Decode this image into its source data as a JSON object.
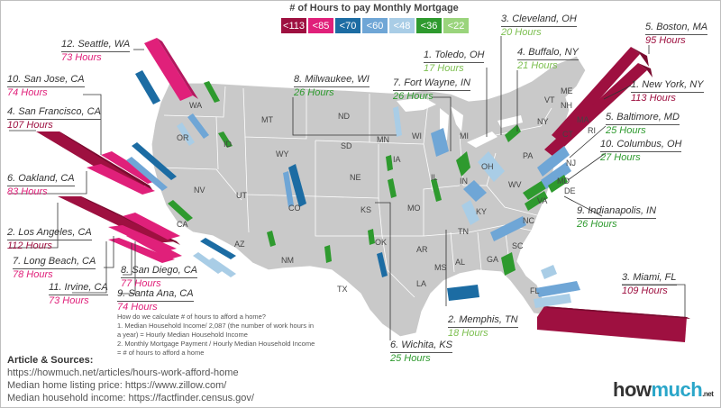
{
  "legend": {
    "title": "# of Hours to pay Monthly Mortgage",
    "items": [
      {
        "label": "<113",
        "color": "#9e1040"
      },
      {
        "label": "<85",
        "color": "#e0207a"
      },
      {
        "label": "<70",
        "color": "#1c6ca3"
      },
      {
        "label": "<60",
        "color": "#6fa6d6"
      },
      {
        "label": "<48",
        "color": "#a9cde6"
      },
      {
        "label": "<36",
        "color": "#2e9a2e"
      },
      {
        "label": "<22",
        "color": "#9ad47c"
      }
    ]
  },
  "cities": [
    {
      "id": "seattle",
      "rank_city": "12. Seattle, WA",
      "hours": "73 Hours",
      "color": "#e0207a"
    },
    {
      "id": "san-jose",
      "rank_city": "10. San Jose, CA",
      "hours": "74 Hours",
      "color": "#e0207a"
    },
    {
      "id": "san-francisco",
      "rank_city": "4. San Francisco, CA",
      "hours": "107 Hours",
      "color": "#9e1040"
    },
    {
      "id": "oakland",
      "rank_city": "6. Oakland, CA",
      "hours": "83 Hours",
      "color": "#e0207a"
    },
    {
      "id": "los-angeles",
      "rank_city": "2. Los Angeles, CA",
      "hours": "112 Hours",
      "color": "#9e1040"
    },
    {
      "id": "long-beach",
      "rank_city": "7. Long Beach, CA",
      "hours": "78 Hours",
      "color": "#e0207a"
    },
    {
      "id": "irvine",
      "rank_city": "11. Irvine, CA",
      "hours": "73 Hours",
      "color": "#e0207a"
    },
    {
      "id": "san-diego",
      "rank_city": "8. San Diego, CA",
      "hours": "77 Hours",
      "color": "#e0207a"
    },
    {
      "id": "santa-ana",
      "rank_city": "9. Santa Ana, CA",
      "hours": "74 Hours",
      "color": "#e0207a"
    },
    {
      "id": "milwaukee",
      "rank_city": "8. Milwaukee, WI",
      "hours": "26 Hours",
      "color": "#2e9a2e"
    },
    {
      "id": "toledo",
      "rank_city": "1. Toledo, OH",
      "hours": "17 Hours",
      "color": "#7cbf4f"
    },
    {
      "id": "fort-wayne",
      "rank_city": "7. Fort Wayne, IN",
      "hours": "26 Hours",
      "color": "#2e9a2e"
    },
    {
      "id": "cleveland",
      "rank_city": "3. Cleveland, OH",
      "hours": "20 Hours",
      "color": "#7cbf4f"
    },
    {
      "id": "buffalo",
      "rank_city": "4. Buffalo, NY",
      "hours": "21 Hours",
      "color": "#7cbf4f"
    },
    {
      "id": "boston",
      "rank_city": "5. Boston, MA",
      "hours": "95 Hours",
      "color": "#9e1040"
    },
    {
      "id": "new-york",
      "rank_city": "1. New York, NY",
      "hours": "113 Hours",
      "color": "#9e1040"
    },
    {
      "id": "baltimore",
      "rank_city": "5. Baltimore, MD",
      "hours": "25 Hours",
      "color": "#2e9a2e"
    },
    {
      "id": "columbus",
      "rank_city": "10. Columbus, OH",
      "hours": "27 Hours",
      "color": "#2e9a2e"
    },
    {
      "id": "indianapolis",
      "rank_city": "9. Indianapolis, IN",
      "hours": "26 Hours",
      "color": "#2e9a2e"
    },
    {
      "id": "miami",
      "rank_city": "3. Miami, FL",
      "hours": "109 Hours",
      "color": "#9e1040"
    },
    {
      "id": "memphis",
      "rank_city": "2. Memphis, TN",
      "hours": "18 Hours",
      "color": "#7cbf4f"
    },
    {
      "id": "wichita",
      "rank_city": "6. Wichita, KS",
      "hours": "25 Hours",
      "color": "#2e9a2e"
    }
  ],
  "states": [
    "WA",
    "OR",
    "ID",
    "MT",
    "ND",
    "MN",
    "WI",
    "MI",
    "NY",
    "VT",
    "ME",
    "NH",
    "MA",
    "RI",
    "CT",
    "NJ",
    "PA",
    "OH",
    "IN",
    "IL",
    "IA",
    "SD",
    "WY",
    "NE",
    "NV",
    "UT",
    "CO",
    "KS",
    "MO",
    "KY",
    "WV",
    "VA",
    "MD",
    "DE",
    "CA",
    "AZ",
    "NM",
    "OK",
    "AR",
    "TN",
    "NC",
    "SC",
    "GA",
    "AL",
    "MS",
    "LA",
    "TX",
    "FL"
  ],
  "methodology": {
    "question": "How do we calculate # of hours to afford a home?",
    "step1_a": "1. Median Household Income/ 2,087 (the number of work hours in",
    "step1_b": "a year) = Hourly Median Household Income",
    "step2_a": "2. Monthly Mortgage Payment / Hourly Median Household Income",
    "step2_b": "= # of hours to afford a home"
  },
  "sources": {
    "title": "Article & Sources:",
    "article": "https://howmuch.net/articles/hours-work-afford-home",
    "home_price": "Median home listing price: https://www.zillow.com/",
    "income": "Median household income: https://factfinder.census.gov/"
  },
  "logo": {
    "part1": "how",
    "part2": "much",
    "suffix": ".net"
  }
}
